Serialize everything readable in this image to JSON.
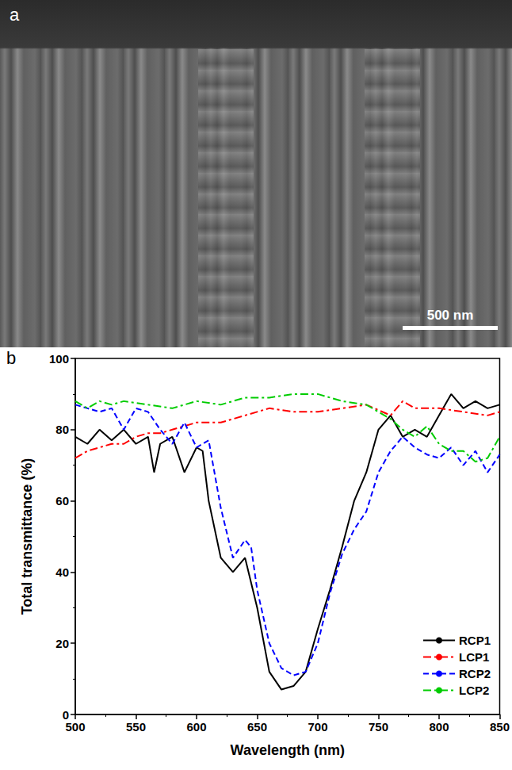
{
  "image": {
    "panel_label": "a",
    "scale_bar": "500 nm"
  },
  "chart_data": {
    "type": "line",
    "panel_label": "b",
    "x_label": "Wavelength (nm)",
    "y_label": "Total transmittance (%)",
    "xlim": [
      500,
      850
    ],
    "xticks": [
      500,
      550,
      600,
      650,
      700,
      750,
      800,
      850
    ],
    "ylim": [
      0,
      100
    ],
    "yticks": [
      0,
      20,
      40,
      60,
      80,
      100
    ],
    "grid": false,
    "legend": "lower right",
    "series": [
      {
        "name": "RCP1",
        "color": "#000000",
        "line_style": "solid",
        "x": [
          500,
          510,
          520,
          530,
          540,
          550,
          560,
          565,
          570,
          580,
          590,
          600,
          605,
          610,
          620,
          630,
          640,
          650,
          660,
          670,
          680,
          690,
          700,
          710,
          720,
          730,
          740,
          750,
          760,
          770,
          780,
          790,
          800,
          810,
          820,
          830,
          840,
          850
        ],
        "values": [
          78,
          76,
          80,
          77,
          80,
          76,
          78,
          68,
          76,
          78,
          68,
          75,
          74,
          60,
          44,
          40,
          44,
          30,
          12,
          7,
          8,
          12,
          24,
          35,
          47,
          60,
          68,
          80,
          84,
          78,
          80,
          78,
          84,
          90,
          86,
          88,
          86,
          87
        ]
      },
      {
        "name": "LCP1",
        "color": "#ff0000",
        "line_style": "dashdot",
        "x": [
          500,
          510,
          520,
          530,
          540,
          550,
          560,
          570,
          580,
          590,
          600,
          620,
          640,
          660,
          680,
          700,
          720,
          740,
          760,
          770,
          780,
          800,
          820,
          840,
          850
        ],
        "values": [
          72,
          74,
          75,
          76,
          76,
          78,
          79,
          79,
          80,
          81,
          82,
          82,
          84,
          86,
          85,
          85,
          86,
          87,
          84,
          88,
          86,
          86,
          85,
          84,
          85
        ]
      },
      {
        "name": "RCP2",
        "color": "#0000ff",
        "line_style": "dashed",
        "x": [
          500,
          510,
          520,
          530,
          540,
          550,
          560,
          570,
          580,
          590,
          600,
          610,
          620,
          630,
          640,
          645,
          650,
          660,
          670,
          680,
          690,
          700,
          710,
          720,
          730,
          740,
          750,
          760,
          770,
          780,
          790,
          800,
          810,
          820,
          830,
          840,
          850
        ],
        "values": [
          87,
          86,
          85,
          86,
          80,
          86,
          85,
          80,
          76,
          82,
          75,
          77,
          58,
          44,
          49,
          47,
          35,
          20,
          13,
          11,
          12,
          20,
          34,
          45,
          52,
          57,
          68,
          74,
          78,
          75,
          73,
          72,
          75,
          70,
          74,
          68,
          73
        ]
      },
      {
        "name": "LCP2",
        "color": "#00cc00",
        "line_style": "dashdot",
        "x": [
          500,
          510,
          520,
          530,
          540,
          560,
          580,
          600,
          620,
          640,
          660,
          680,
          700,
          720,
          740,
          760,
          770,
          780,
          790,
          800,
          810,
          820,
          830,
          840,
          850
        ],
        "values": [
          88,
          86,
          88,
          87,
          88,
          87,
          86,
          88,
          87,
          89,
          89,
          90,
          90,
          88,
          87,
          83,
          80,
          78,
          81,
          76,
          74,
          74,
          71,
          72,
          78
        ]
      }
    ]
  }
}
